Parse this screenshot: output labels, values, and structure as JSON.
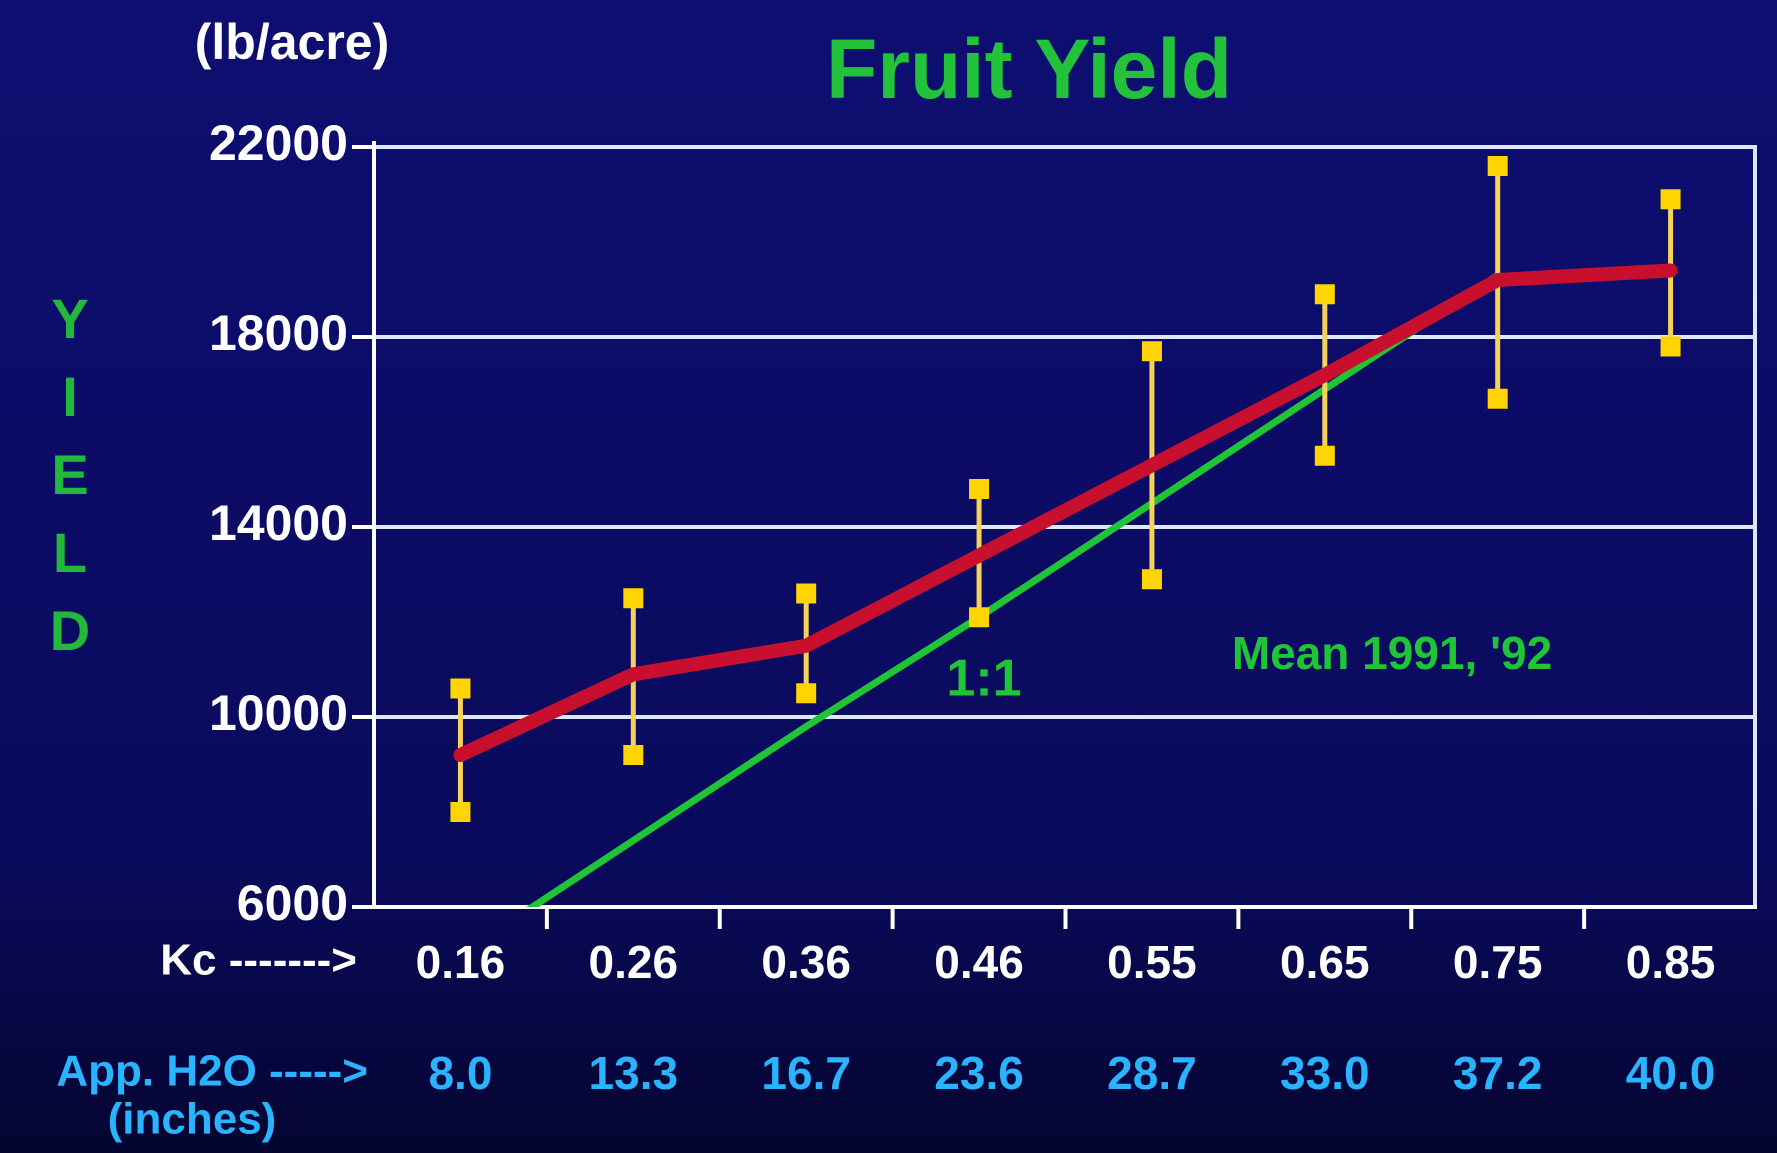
{
  "chart_data": {
    "type": "line",
    "title": "Fruit Yield",
    "y_unit": "(lb/acre)",
    "y_label": "YIELD",
    "x_row_label": "Kc ------->",
    "categories": [
      "0.16",
      "0.26",
      "0.36",
      "0.46",
      "0.55",
      "0.65",
      "0.75",
      "0.85"
    ],
    "secondary_row_label": "App. H2O ----->",
    "secondary_row_unit": "(inches)",
    "secondary_categories": [
      "8.0",
      "13.3",
      "16.7",
      "23.6",
      "28.7",
      "33.0",
      "37.2",
      "40.0"
    ],
    "series": [
      {
        "name": "Mean 1991, '92",
        "color": "#c8102e",
        "values": [
          9200,
          10900,
          11500,
          13400,
          15300,
          17200,
          19200,
          19400
        ],
        "lower": [
          8000,
          9200,
          10500,
          12100,
          12900,
          15500,
          16700,
          17800
        ],
        "upper": [
          10600,
          12500,
          12600,
          14800,
          17700,
          18900,
          21600,
          20900
        ],
        "error_color": "#f5d35a"
      },
      {
        "name": "1:1",
        "color": "#1fc437",
        "values": [
          5000,
          7400,
          9800,
          12100,
          14500,
          16900,
          19300,
          null
        ]
      }
    ],
    "ylim": [
      6000,
      22000
    ],
    "yticks": [
      6000,
      10000,
      14000,
      18000,
      22000
    ],
    "grid": true
  }
}
